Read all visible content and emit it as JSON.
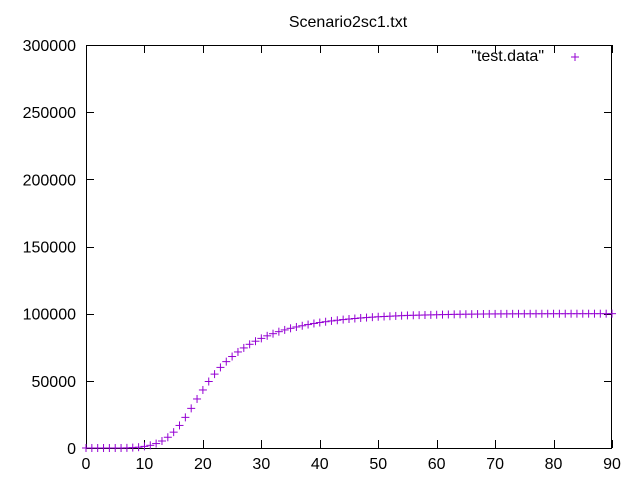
{
  "chart_data": {
    "type": "scatter",
    "title": "Scenario2sc1.txt",
    "xlabel": "",
    "ylabel": "",
    "xlim": [
      0,
      90
    ],
    "ylim": [
      0,
      300000
    ],
    "xticks": [
      0,
      10,
      20,
      30,
      40,
      50,
      60,
      70,
      80,
      90
    ],
    "yticks": [
      0,
      50000,
      100000,
      150000,
      200000,
      250000,
      300000
    ],
    "xtick_labels": [
      "0",
      "10",
      "20",
      "30",
      "40",
      "50",
      "60",
      "70",
      "80",
      "90"
    ],
    "ytick_labels": [
      "0",
      "50000",
      "100000",
      "150000",
      "200000",
      "250000",
      "300000"
    ],
    "grid": false,
    "legend_position": "top-right",
    "marker": "plus",
    "color": "#9400d3",
    "series": [
      {
        "name": "\"test.data\"",
        "x": [
          0,
          1,
          2,
          3,
          4,
          5,
          6,
          7,
          8,
          9,
          10,
          11,
          12,
          13,
          14,
          15,
          16,
          17,
          18,
          19,
          20,
          21,
          22,
          23,
          24,
          25,
          26,
          27,
          28,
          29,
          30,
          31,
          32,
          33,
          34,
          35,
          36,
          37,
          38,
          39,
          40,
          41,
          42,
          43,
          44,
          45,
          46,
          47,
          48,
          49,
          50,
          51,
          52,
          53,
          54,
          55,
          56,
          57,
          58,
          59,
          60,
          61,
          62,
          63,
          64,
          65,
          66,
          67,
          68,
          69,
          70,
          71,
          72,
          73,
          74,
          75,
          76,
          77,
          78,
          79,
          80,
          81,
          82,
          83,
          84,
          85,
          86,
          87,
          88,
          89,
          90
        ],
        "y": [
          0,
          0,
          0,
          0,
          0,
          0,
          0,
          100,
          300,
          600,
          1200,
          2000,
          3300,
          5200,
          8000,
          11800,
          16800,
          22800,
          29500,
          36500,
          43200,
          49500,
          55000,
          60000,
          64300,
          68100,
          71500,
          74500,
          77200,
          79500,
          81600,
          83500,
          85100,
          86600,
          87900,
          89100,
          90100,
          91000,
          91900,
          92700,
          93400,
          94000,
          94600,
          95100,
          95600,
          96000,
          96400,
          96800,
          97100,
          97400,
          97700,
          97900,
          98100,
          98300,
          98500,
          98700,
          98800,
          98900,
          99000,
          99100,
          99200,
          99300,
          99400,
          99500,
          99550,
          99600,
          99650,
          99700,
          99750,
          99800,
          99820,
          99840,
          99860,
          99880,
          99900,
          99910,
          99920,
          99930,
          99940,
          99950,
          99955,
          99960,
          99965,
          99970,
          99975,
          99980,
          99983,
          99986,
          99989,
          99992,
          99995
        ]
      }
    ]
  }
}
